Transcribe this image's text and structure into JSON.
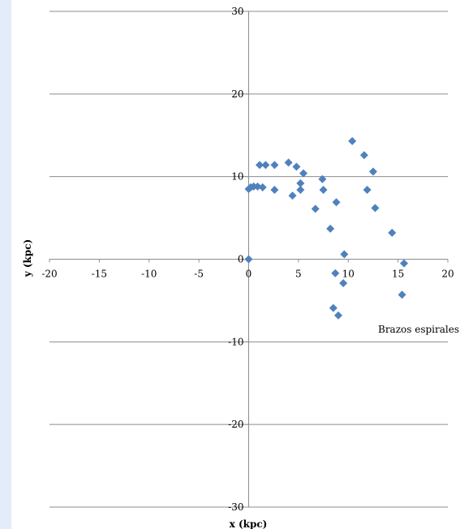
{
  "chart_data": {
    "type": "scatter",
    "title": "",
    "xlabel": "x (kpc)",
    "ylabel": "y (kpc)",
    "xlim": [
      -20,
      20
    ],
    "ylim": [
      -30,
      30
    ],
    "x_ticks": [
      "-20",
      "-15",
      "-10",
      "-5",
      "0",
      "5",
      "10",
      "15",
      "20"
    ],
    "y_ticks": [
      "30",
      "20",
      "10",
      "0",
      "-10",
      "-20",
      "-30"
    ],
    "grid": "horizontal",
    "legend": "none",
    "marker_color": "#4f81bd",
    "annotation": "Brazos espirales",
    "series": [
      {
        "points": [
          [
            0.0,
            0.0
          ],
          [
            0.0,
            8.5
          ],
          [
            0.2,
            8.7
          ],
          [
            0.5,
            8.8
          ],
          [
            0.9,
            8.8
          ],
          [
            1.4,
            8.7
          ],
          [
            1.1,
            11.4
          ],
          [
            1.7,
            11.4
          ],
          [
            2.6,
            11.4
          ],
          [
            2.6,
            8.4
          ],
          [
            4.0,
            11.7
          ],
          [
            4.8,
            11.2
          ],
          [
            5.2,
            9.2
          ],
          [
            5.5,
            10.4
          ],
          [
            5.2,
            8.4
          ],
          [
            4.4,
            7.7
          ],
          [
            6.7,
            6.1
          ],
          [
            7.4,
            9.7
          ],
          [
            7.5,
            8.4
          ],
          [
            8.2,
            3.7
          ],
          [
            8.8,
            6.9
          ],
          [
            10.4,
            14.3
          ],
          [
            11.6,
            12.6
          ],
          [
            12.5,
            10.6
          ],
          [
            11.9,
            8.4
          ],
          [
            12.7,
            6.2
          ],
          [
            14.4,
            3.2
          ],
          [
            9.6,
            0.6
          ],
          [
            15.6,
            -0.5
          ],
          [
            8.7,
            -1.7
          ],
          [
            9.5,
            -2.9
          ],
          [
            15.4,
            -4.3
          ],
          [
            8.5,
            -5.9
          ],
          [
            9.0,
            -6.8
          ]
        ]
      }
    ]
  }
}
